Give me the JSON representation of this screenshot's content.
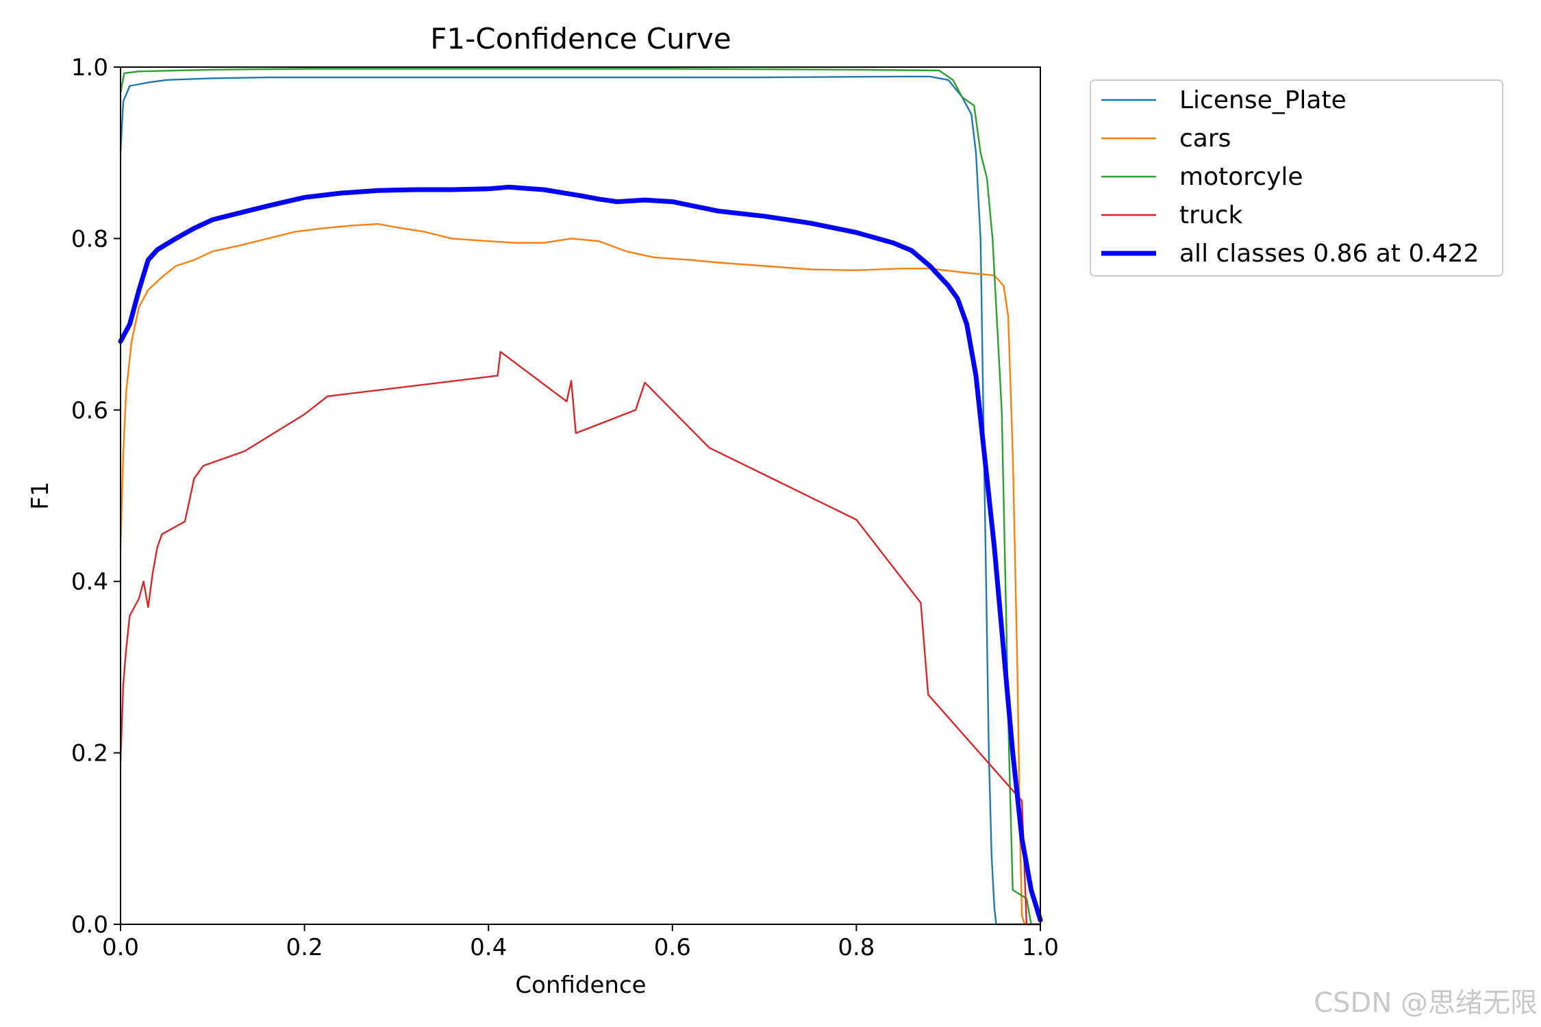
{
  "chart_data": {
    "type": "line",
    "title": "F1-Confidence Curve",
    "xlabel": "Confidence",
    "ylabel": "F1",
    "xlim": [
      0,
      1
    ],
    "ylim": [
      0,
      1
    ],
    "xticks": [
      "0.0",
      "0.2",
      "0.4",
      "0.6",
      "0.8",
      "1.0"
    ],
    "yticks": [
      "0.0",
      "0.2",
      "0.4",
      "0.6",
      "0.8",
      "1.0"
    ],
    "grid": false,
    "legend_position": "outside-top-right",
    "series": [
      {
        "name": "License_Plate",
        "color": "#1f77b4",
        "emphasis": false,
        "points": [
          [
            0.0,
            0.9
          ],
          [
            0.003,
            0.96
          ],
          [
            0.01,
            0.978
          ],
          [
            0.03,
            0.982
          ],
          [
            0.05,
            0.985
          ],
          [
            0.1,
            0.987
          ],
          [
            0.16,
            0.988
          ],
          [
            0.3,
            0.988
          ],
          [
            0.5,
            0.988
          ],
          [
            0.7,
            0.988
          ],
          [
            0.85,
            0.989
          ],
          [
            0.88,
            0.989
          ],
          [
            0.9,
            0.985
          ],
          [
            0.915,
            0.965
          ],
          [
            0.925,
            0.945
          ],
          [
            0.93,
            0.9
          ],
          [
            0.935,
            0.8
          ],
          [
            0.938,
            0.6
          ],
          [
            0.941,
            0.4
          ],
          [
            0.944,
            0.2
          ],
          [
            0.947,
            0.08
          ],
          [
            0.95,
            0.02
          ],
          [
            0.952,
            0.0
          ],
          [
            1.0,
            0.0
          ]
        ]
      },
      {
        "name": "cars",
        "color": "#ff7f0e",
        "emphasis": false,
        "points": [
          [
            0.0,
            0.44
          ],
          [
            0.003,
            0.55
          ],
          [
            0.006,
            0.62
          ],
          [
            0.012,
            0.68
          ],
          [
            0.02,
            0.72
          ],
          [
            0.03,
            0.74
          ],
          [
            0.045,
            0.755
          ],
          [
            0.06,
            0.768
          ],
          [
            0.08,
            0.775
          ],
          [
            0.1,
            0.785
          ],
          [
            0.13,
            0.792
          ],
          [
            0.16,
            0.8
          ],
          [
            0.19,
            0.808
          ],
          [
            0.22,
            0.812
          ],
          [
            0.25,
            0.815
          ],
          [
            0.28,
            0.817
          ],
          [
            0.3,
            0.813
          ],
          [
            0.33,
            0.808
          ],
          [
            0.36,
            0.8
          ],
          [
            0.4,
            0.797
          ],
          [
            0.43,
            0.795
          ],
          [
            0.46,
            0.795
          ],
          [
            0.49,
            0.8
          ],
          [
            0.52,
            0.797
          ],
          [
            0.55,
            0.785
          ],
          [
            0.58,
            0.778
          ],
          [
            0.62,
            0.775
          ],
          [
            0.65,
            0.772
          ],
          [
            0.7,
            0.768
          ],
          [
            0.75,
            0.764
          ],
          [
            0.8,
            0.763
          ],
          [
            0.85,
            0.765
          ],
          [
            0.88,
            0.765
          ],
          [
            0.92,
            0.76
          ],
          [
            0.95,
            0.757
          ],
          [
            0.96,
            0.745
          ],
          [
            0.965,
            0.71
          ],
          [
            0.97,
            0.55
          ],
          [
            0.975,
            0.3
          ],
          [
            0.978,
            0.1
          ],
          [
            0.98,
            0.01
          ],
          [
            0.983,
            0.0
          ],
          [
            1.0,
            0.0
          ]
        ]
      },
      {
        "name": "motorcyle",
        "color": "#2ca02c",
        "emphasis": false,
        "points": [
          [
            0.0,
            0.97
          ],
          [
            0.004,
            0.993
          ],
          [
            0.02,
            0.995
          ],
          [
            0.1,
            0.997
          ],
          [
            0.2,
            0.998
          ],
          [
            0.4,
            0.998
          ],
          [
            0.6,
            0.998
          ],
          [
            0.8,
            0.997
          ],
          [
            0.89,
            0.996
          ],
          [
            0.905,
            0.985
          ],
          [
            0.915,
            0.965
          ],
          [
            0.928,
            0.955
          ],
          [
            0.935,
            0.9
          ],
          [
            0.942,
            0.87
          ],
          [
            0.948,
            0.8
          ],
          [
            0.953,
            0.7
          ],
          [
            0.958,
            0.6
          ],
          [
            0.962,
            0.4
          ],
          [
            0.966,
            0.2
          ],
          [
            0.97,
            0.04
          ],
          [
            0.985,
            0.03
          ],
          [
            0.99,
            0.0
          ],
          [
            1.0,
            0.0
          ]
        ]
      },
      {
        "name": "truck",
        "color": "#d62728",
        "emphasis": false,
        "points": [
          [
            0.0,
            0.19
          ],
          [
            0.003,
            0.28
          ],
          [
            0.006,
            0.32
          ],
          [
            0.01,
            0.36
          ],
          [
            0.02,
            0.38
          ],
          [
            0.025,
            0.4
          ],
          [
            0.03,
            0.37
          ],
          [
            0.035,
            0.41
          ],
          [
            0.04,
            0.44
          ],
          [
            0.045,
            0.455
          ],
          [
            0.07,
            0.47
          ],
          [
            0.08,
            0.52
          ],
          [
            0.09,
            0.535
          ],
          [
            0.135,
            0.552
          ],
          [
            0.2,
            0.595
          ],
          [
            0.225,
            0.616
          ],
          [
            0.41,
            0.64
          ],
          [
            0.413,
            0.668
          ],
          [
            0.485,
            0.61
          ],
          [
            0.49,
            0.634
          ],
          [
            0.495,
            0.573
          ],
          [
            0.56,
            0.6
          ],
          [
            0.57,
            0.632
          ],
          [
            0.64,
            0.556
          ],
          [
            0.8,
            0.472
          ],
          [
            0.87,
            0.375
          ],
          [
            0.878,
            0.268
          ],
          [
            0.98,
            0.144
          ],
          [
            0.985,
            0.0
          ],
          [
            1.0,
            0.0
          ]
        ]
      },
      {
        "name": "all classes 0.86 at 0.422",
        "color": "#0000ff",
        "emphasis": true,
        "points": [
          [
            0.0,
            0.68
          ],
          [
            0.01,
            0.7
          ],
          [
            0.02,
            0.74
          ],
          [
            0.03,
            0.775
          ],
          [
            0.04,
            0.787
          ],
          [
            0.06,
            0.8
          ],
          [
            0.08,
            0.812
          ],
          [
            0.1,
            0.822
          ],
          [
            0.13,
            0.83
          ],
          [
            0.16,
            0.838
          ],
          [
            0.2,
            0.848
          ],
          [
            0.24,
            0.853
          ],
          [
            0.28,
            0.856
          ],
          [
            0.32,
            0.857
          ],
          [
            0.36,
            0.857
          ],
          [
            0.4,
            0.858
          ],
          [
            0.422,
            0.86
          ],
          [
            0.46,
            0.857
          ],
          [
            0.5,
            0.85
          ],
          [
            0.52,
            0.846
          ],
          [
            0.54,
            0.843
          ],
          [
            0.57,
            0.845
          ],
          [
            0.6,
            0.843
          ],
          [
            0.65,
            0.832
          ],
          [
            0.7,
            0.826
          ],
          [
            0.75,
            0.818
          ],
          [
            0.8,
            0.807
          ],
          [
            0.84,
            0.795
          ],
          [
            0.86,
            0.786
          ],
          [
            0.88,
            0.768
          ],
          [
            0.9,
            0.745
          ],
          [
            0.91,
            0.73
          ],
          [
            0.92,
            0.7
          ],
          [
            0.93,
            0.64
          ],
          [
            0.94,
            0.54
          ],
          [
            0.95,
            0.44
          ],
          [
            0.96,
            0.32
          ],
          [
            0.97,
            0.2
          ],
          [
            0.98,
            0.1
          ],
          [
            0.99,
            0.04
          ],
          [
            1.0,
            0.005
          ]
        ]
      }
    ]
  },
  "watermark": "CSDN @思绪无限"
}
